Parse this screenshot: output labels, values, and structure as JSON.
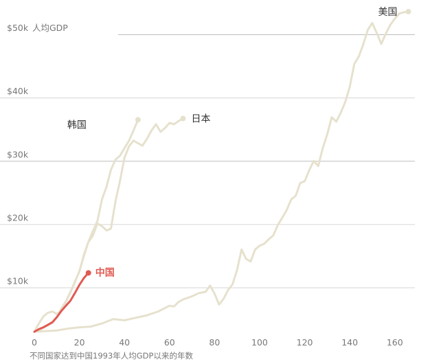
{
  "chart_data": {
    "type": "line",
    "title": "",
    "xlabel": "不同国家达到中国1993年人均GDP以来的年数",
    "ylabel": "人均GDP",
    "xlim": [
      0,
      168
    ],
    "ylim": [
      3000,
      55000
    ],
    "grid": true,
    "y_ticks": [
      {
        "value": 10000,
        "label": "$10k"
      },
      {
        "value": 20000,
        "label": "$20k"
      },
      {
        "value": 30000,
        "label": "$30k"
      },
      {
        "value": 40000,
        "label": "$40k"
      },
      {
        "value": 50000,
        "label": "$50k"
      }
    ],
    "x_ticks": [
      {
        "value": 0,
        "label": "0"
      },
      {
        "value": 20,
        "label": "20"
      },
      {
        "value": 40,
        "label": "40"
      },
      {
        "value": 60,
        "label": "60"
      },
      {
        "value": 80,
        "label": "80"
      },
      {
        "value": 100,
        "label": "100"
      },
      {
        "value": 120,
        "label": "120"
      },
      {
        "value": 140,
        "label": "140"
      },
      {
        "value": 160,
        "label": "160"
      }
    ],
    "colors": {
      "highlight": "#e05a52",
      "others": "#e6e1cd",
      "grid": "#d6d6d6"
    },
    "series": [
      {
        "name": "美国",
        "highlight": false,
        "x": [
          0,
          5,
          10,
          15,
          20,
          25,
          30,
          35,
          40,
          45,
          50,
          55,
          60,
          62,
          64,
          66,
          70,
          73,
          76,
          78,
          80,
          82,
          84,
          86,
          88,
          90,
          92,
          94,
          96,
          98,
          100,
          102,
          104,
          106,
          108,
          110,
          112,
          114,
          116,
          118,
          120,
          122,
          124,
          126,
          128,
          130,
          132,
          134,
          136,
          138,
          140,
          142,
          144,
          146,
          148,
          150,
          152,
          154,
          156,
          158,
          160,
          162,
          164,
          166
        ],
        "y": [
          3000,
          3100,
          3200,
          3500,
          3700,
          3800,
          4300,
          5000,
          4800,
          5200,
          5600,
          6200,
          7100,
          7000,
          7700,
          8100,
          8600,
          9100,
          9300,
          10300,
          9000,
          7300,
          8200,
          9600,
          10500,
          12800,
          16000,
          14500,
          14100,
          16000,
          16600,
          16900,
          17600,
          18200,
          19800,
          21000,
          22200,
          23900,
          24500,
          26500,
          26800,
          28500,
          30000,
          29200,
          32000,
          34200,
          36900,
          36200,
          37600,
          39300,
          41700,
          45300,
          46500,
          48400,
          50700,
          51800,
          50200,
          48500,
          50100,
          51500,
          52500,
          53300,
          53500,
          53600
        ],
        "end_label": "美国"
      },
      {
        "name": "日本",
        "highlight": false,
        "x": [
          0,
          3,
          5,
          8,
          10,
          12,
          14,
          16,
          18,
          20,
          22,
          24,
          26,
          28,
          30,
          32,
          34,
          36,
          38,
          40,
          42,
          44,
          46,
          48,
          50,
          52,
          54,
          56,
          58,
          60,
          62,
          64,
          66
        ],
        "y": [
          3000,
          3400,
          3800,
          4400,
          5300,
          6700,
          7800,
          9300,
          10900,
          12500,
          15200,
          17200,
          18200,
          20100,
          19700,
          19000,
          19300,
          23600,
          26800,
          30500,
          32300,
          33200,
          32800,
          32400,
          33500,
          34800,
          35800,
          34600,
          35200,
          36000,
          35800,
          36300,
          36700
        ],
        "end_label": "日本"
      },
      {
        "name": "韩国",
        "highlight": false,
        "x": [
          0,
          2,
          4,
          6,
          8,
          10,
          12,
          14,
          16,
          18,
          20,
          22,
          24,
          26,
          28,
          30,
          32,
          34,
          36,
          38,
          40,
          42,
          44,
          46
        ],
        "y": [
          3000,
          4300,
          5400,
          6000,
          6200,
          5800,
          6400,
          7700,
          9200,
          10800,
          12600,
          15000,
          17200,
          18900,
          20500,
          23900,
          25900,
          28600,
          30200,
          30800,
          32000,
          33200,
          34800,
          36500
        ],
        "end_label": "韩国"
      },
      {
        "name": "中国",
        "highlight": true,
        "x": [
          0,
          2,
          4,
          6,
          8,
          10,
          12,
          14,
          16,
          18,
          20,
          22,
          24
        ],
        "y": [
          3000,
          3400,
          3700,
          4100,
          4500,
          5300,
          6300,
          7100,
          7900,
          9100,
          10400,
          11500,
          12300
        ],
        "end_label": "中国"
      }
    ]
  }
}
